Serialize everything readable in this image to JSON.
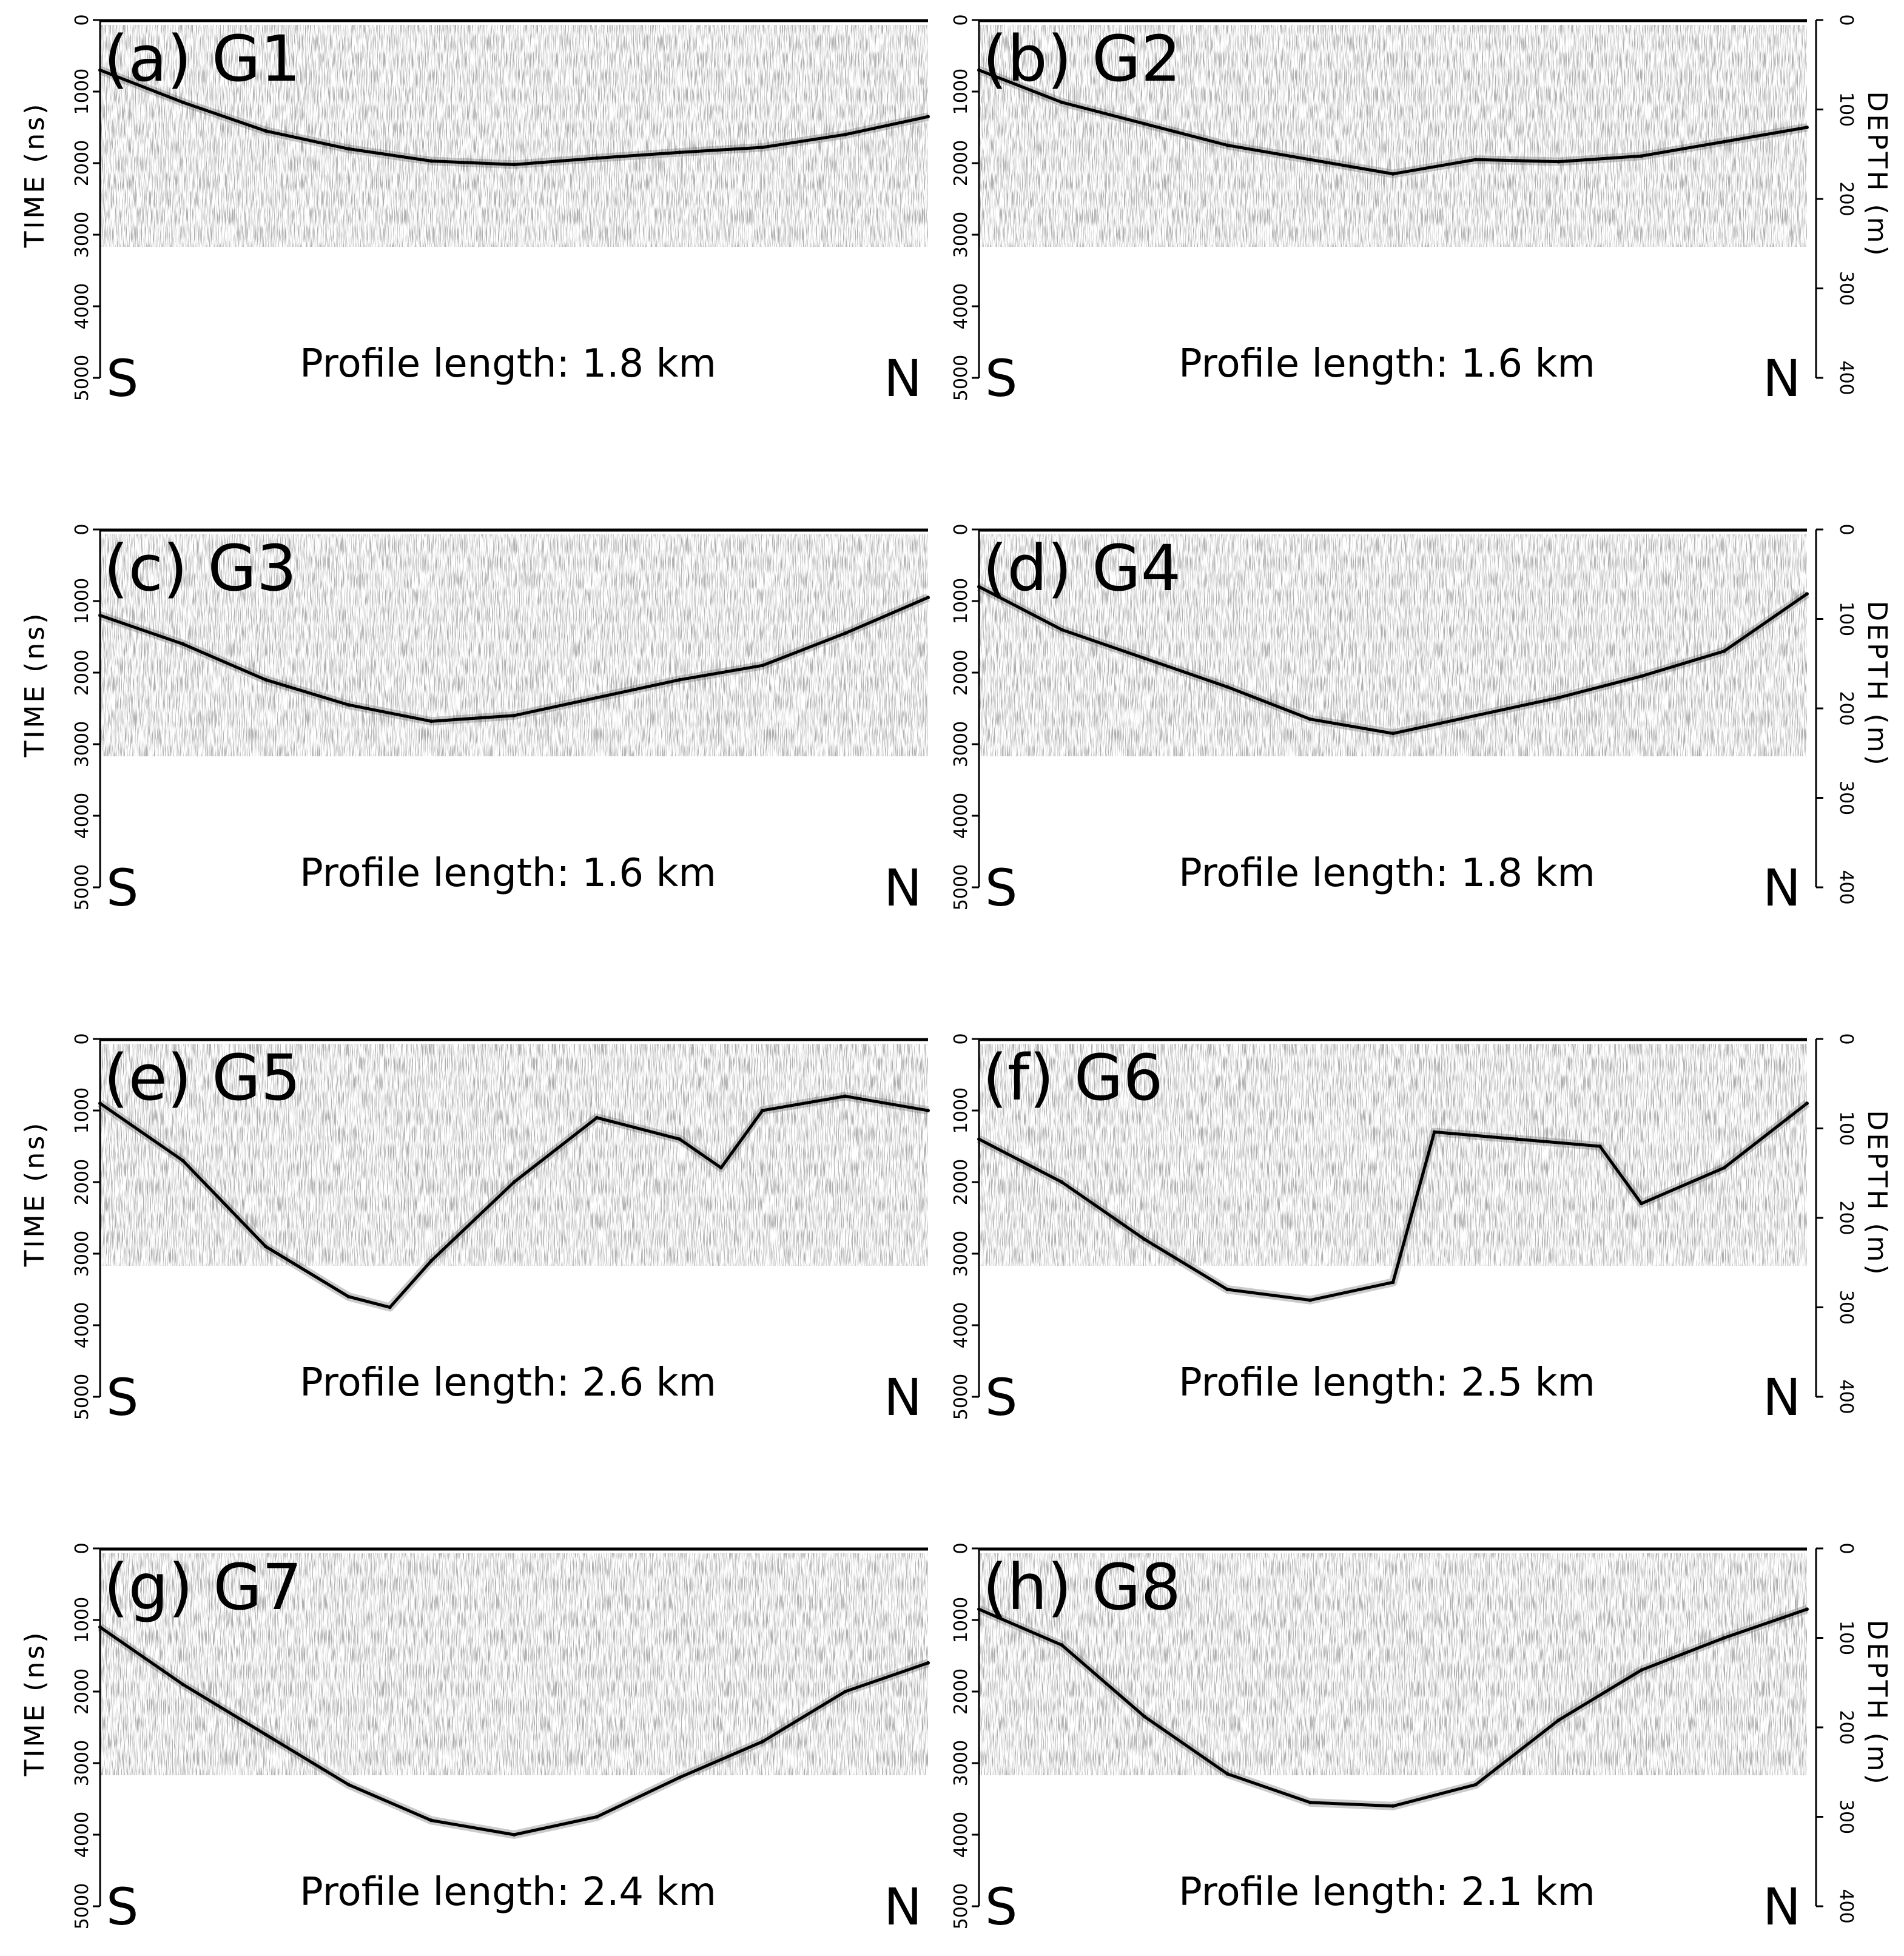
{
  "figure": {
    "left_axis_label": "TIME (ns)",
    "right_axis_label": "DEPTH (m)",
    "time_ticks": [
      "0",
      "1000",
      "2000",
      "3000",
      "4000",
      "5000"
    ],
    "depth_ticks": [
      "0",
      "100",
      "200",
      "300",
      "400"
    ],
    "start_label": "S",
    "end_label": "N",
    "colors": {
      "ink": "#000000",
      "background": "#ffffff",
      "noise": "#6b6b6b"
    }
  },
  "chart_data": [
    {
      "type": "line",
      "panel": "(a) G1",
      "profile_label": "Profile length: 1.8 km",
      "x": [
        0,
        0.1,
        0.2,
        0.3,
        0.4,
        0.5,
        0.6,
        0.7,
        0.8,
        0.9,
        1.0
      ],
      "bed_time_ns": [
        700,
        1150,
        1550,
        1800,
        1970,
        2020,
        1930,
        1850,
        1780,
        1600,
        1350
      ],
      "ylim": [
        5000,
        0
      ]
    },
    {
      "type": "line",
      "panel": "(b) G2",
      "profile_label": "Profile length: 1.6 km",
      "x": [
        0,
        0.1,
        0.2,
        0.3,
        0.4,
        0.5,
        0.6,
        0.7,
        0.8,
        0.9,
        1.0
      ],
      "bed_time_ns": [
        700,
        1150,
        1450,
        1750,
        1950,
        2150,
        1950,
        1980,
        1900,
        1700,
        1500
      ],
      "ylim": [
        5000,
        0
      ]
    },
    {
      "type": "line",
      "panel": "(c) G3",
      "profile_label": "Profile length: 1.6 km",
      "x": [
        0,
        0.1,
        0.2,
        0.3,
        0.4,
        0.5,
        0.6,
        0.7,
        0.8,
        0.9,
        1.0
      ],
      "bed_time_ns": [
        1200,
        1600,
        2100,
        2450,
        2680,
        2600,
        2350,
        2100,
        1900,
        1450,
        950
      ],
      "ylim": [
        5000,
        0
      ]
    },
    {
      "type": "line",
      "panel": "(d) G4",
      "profile_label": "Profile length: 1.8 km",
      "x": [
        0,
        0.1,
        0.2,
        0.3,
        0.4,
        0.5,
        0.6,
        0.7,
        0.8,
        0.9,
        1.0
      ],
      "bed_time_ns": [
        800,
        1400,
        1800,
        2200,
        2650,
        2850,
        2600,
        2350,
        2050,
        1700,
        900
      ],
      "ylim": [
        5000,
        0
      ]
    },
    {
      "type": "line",
      "panel": "(e) G5",
      "profile_label": "Profile length: 2.6 km",
      "x": [
        0,
        0.1,
        0.2,
        0.3,
        0.35,
        0.4,
        0.5,
        0.6,
        0.7,
        0.75,
        0.8,
        0.9,
        1.0
      ],
      "bed_time_ns": [
        900,
        1700,
        2900,
        3600,
        3750,
        3100,
        2000,
        1100,
        1400,
        1800,
        1000,
        800,
        1000
      ],
      "ylim": [
        5000,
        0
      ]
    },
    {
      "type": "line",
      "panel": "(f) G6",
      "profile_label": "Profile length: 2.5 km",
      "x": [
        0,
        0.1,
        0.2,
        0.3,
        0.4,
        0.5,
        0.55,
        0.65,
        0.75,
        0.8,
        0.9,
        1.0
      ],
      "bed_time_ns": [
        1400,
        2000,
        2800,
        3500,
        3650,
        3400,
        1300,
        1400,
        1500,
        2300,
        1800,
        900
      ],
      "ylim": [
        5000,
        0
      ]
    },
    {
      "type": "line",
      "panel": "(g) G7",
      "profile_label": "Profile length: 2.4 km",
      "x": [
        0,
        0.1,
        0.2,
        0.3,
        0.4,
        0.5,
        0.6,
        0.7,
        0.8,
        0.9,
        1.0
      ],
      "bed_time_ns": [
        1100,
        1900,
        2600,
        3300,
        3800,
        4000,
        3750,
        3200,
        2700,
        2000,
        1600
      ],
      "ylim": [
        5000,
        0
      ]
    },
    {
      "type": "line",
      "panel": "(h) G8",
      "profile_label": "Profile length: 2.1 km",
      "x": [
        0,
        0.1,
        0.2,
        0.3,
        0.4,
        0.5,
        0.6,
        0.7,
        0.8,
        0.9,
        1.0
      ],
      "bed_time_ns": [
        850,
        1350,
        2350,
        3150,
        3550,
        3600,
        3300,
        2400,
        1700,
        1250,
        850
      ],
      "ylim": [
        5000,
        0
      ]
    }
  ]
}
